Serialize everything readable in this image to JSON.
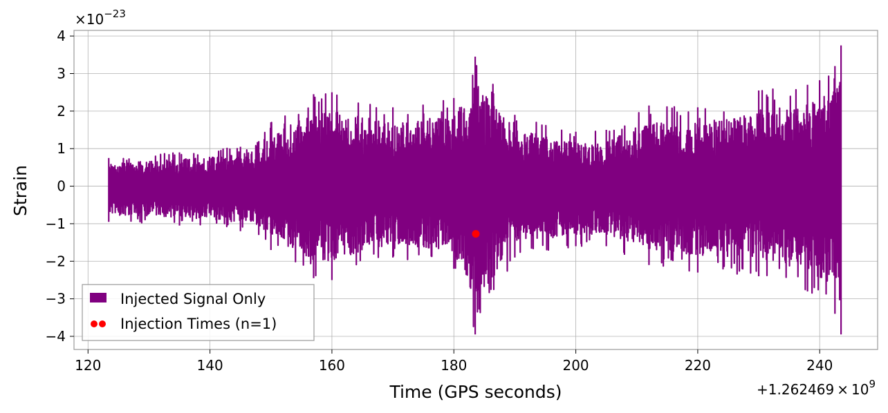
{
  "chart_data": {
    "type": "line",
    "xlabel": "Time (GPS seconds)",
    "ylabel": "Strain",
    "x_offset_label": "+1.262469",
    "x_offset_times": "×",
    "x_offset_base": "10",
    "x_offset_exp": "9",
    "y_scale_times": "×",
    "y_scale_base": "10",
    "y_scale_exp": "−23",
    "xlim": [
      117.7,
      249.5
    ],
    "ylim": [
      -4.35,
      4.15
    ],
    "xticks": [
      120,
      140,
      160,
      180,
      200,
      220,
      240
    ],
    "xtick_labels": [
      "120",
      "140",
      "160",
      "180",
      "200",
      "220",
      "240"
    ],
    "yticks": [
      -4,
      -3,
      -2,
      -1,
      0,
      1,
      2,
      3,
      4
    ],
    "ytick_labels": [
      "−4",
      "−3",
      "−2",
      "−1",
      "0",
      "1",
      "2",
      "3",
      "4"
    ],
    "grid": true,
    "legend_position": "lower-left",
    "series": [
      {
        "name": "Injected Signal Only",
        "color": "#800080",
        "x_range": [
          123.4,
          243.5
        ],
        "envelope": [
          {
            "x": 123.4,
            "upper": 0.75,
            "lower": -0.95
          },
          {
            "x": 135,
            "upper": 0.9,
            "lower": -1.05
          },
          {
            "x": 145,
            "upper": 1.05,
            "lower": -1.2
          },
          {
            "x": 148,
            "upper": 1.2,
            "lower": -1.3
          },
          {
            "x": 150,
            "upper": 1.7,
            "lower": -1.7
          },
          {
            "x": 157,
            "upper": 2.45,
            "lower": -2.45
          },
          {
            "x": 160,
            "upper": 2.5,
            "lower": -2.5
          },
          {
            "x": 170,
            "upper": 2.1,
            "lower": -1.9
          },
          {
            "x": 180,
            "upper": 2.35,
            "lower": -2.2
          },
          {
            "x": 183.5,
            "upper": 3.45,
            "lower": -3.95
          },
          {
            "x": 190,
            "upper": 1.9,
            "lower": -1.9
          },
          {
            "x": 200,
            "upper": 1.45,
            "lower": -1.6
          },
          {
            "x": 205,
            "upper": 1.5,
            "lower": -1.6
          },
          {
            "x": 212,
            "upper": 2.15,
            "lower": -2.1
          },
          {
            "x": 220,
            "upper": 2.1,
            "lower": -2.3
          },
          {
            "x": 230,
            "upper": 2.55,
            "lower": -2.4
          },
          {
            "x": 238,
            "upper": 2.7,
            "lower": -2.8
          },
          {
            "x": 242.5,
            "upper": 3.2,
            "lower": -3.4
          },
          {
            "x": 243.5,
            "upper": 3.75,
            "lower": -3.95
          }
        ]
      },
      {
        "name": "Injection Times (n=1)",
        "color": "#ff0000",
        "type": "scatter",
        "points": [
          {
            "x": 183.6,
            "y": -1.27
          }
        ]
      }
    ]
  }
}
